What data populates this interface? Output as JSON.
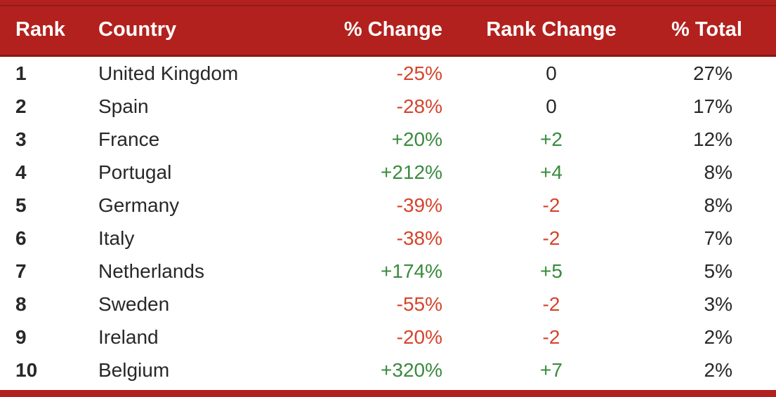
{
  "colors": {
    "header_bg": "#B2211D",
    "header_text": "#FFFFFF",
    "accent_line": "#8C1712",
    "text": "#282828",
    "negative": "#D6432C",
    "positive": "#3A8A3E"
  },
  "table": {
    "columns": [
      {
        "label": "Rank"
      },
      {
        "label": "Country"
      },
      {
        "label": "% Change"
      },
      {
        "label": "Rank Change"
      },
      {
        "label": "% Total"
      }
    ],
    "rows": [
      {
        "rank": "1",
        "country": "United Kingdom",
        "pct_change": "-25%",
        "rank_change": "0",
        "pct_total": "27%"
      },
      {
        "rank": "2",
        "country": "Spain",
        "pct_change": "-28%",
        "rank_change": "0",
        "pct_total": "17%"
      },
      {
        "rank": "3",
        "country": "France",
        "pct_change": "+20%",
        "rank_change": "+2",
        "pct_total": "12%"
      },
      {
        "rank": "4",
        "country": "Portugal",
        "pct_change": "+212%",
        "rank_change": "+4",
        "pct_total": "8%"
      },
      {
        "rank": "5",
        "country": "Germany",
        "pct_change": "-39%",
        "rank_change": "-2",
        "pct_total": "8%"
      },
      {
        "rank": "6",
        "country": "Italy",
        "pct_change": "-38%",
        "rank_change": "-2",
        "pct_total": "7%"
      },
      {
        "rank": "7",
        "country": "Netherlands",
        "pct_change": "+174%",
        "rank_change": "+5",
        "pct_total": "5%"
      },
      {
        "rank": "8",
        "country": "Sweden",
        "pct_change": "-55%",
        "rank_change": "-2",
        "pct_total": "3%"
      },
      {
        "rank": "9",
        "country": "Ireland",
        "pct_change": "-20%",
        "rank_change": "-2",
        "pct_total": "2%"
      },
      {
        "rank": "10",
        "country": "Belgium",
        "pct_change": "+320%",
        "rank_change": "+7",
        "pct_total": "2%"
      }
    ]
  },
  "chart_data": {
    "type": "table",
    "columns": [
      "Rank",
      "Country",
      "% Change",
      "Rank Change",
      "% Total"
    ],
    "rows": [
      [
        1,
        "United Kingdom",
        "-25%",
        "0",
        "27%"
      ],
      [
        2,
        "Spain",
        "-28%",
        "0",
        "17%"
      ],
      [
        3,
        "France",
        "+20%",
        "+2",
        "12%"
      ],
      [
        4,
        "Portugal",
        "+212%",
        "+4",
        "8%"
      ],
      [
        5,
        "Germany",
        "-39%",
        "-2",
        "8%"
      ],
      [
        6,
        "Italy",
        "-38%",
        "-2",
        "7%"
      ],
      [
        7,
        "Netherlands",
        "+174%",
        "+5",
        "5%"
      ],
      [
        8,
        "Sweden",
        "-55%",
        "-2",
        "3%"
      ],
      [
        9,
        "Ireland",
        "-20%",
        "-2",
        "2%"
      ],
      [
        10,
        "Belgium",
        "+320%",
        "+7",
        "2%"
      ]
    ],
    "layout_hints": {
      "header_style": "bold white on dark red",
      "negative_values_color": "#D6432C",
      "positive_values_color": "#3A8A3E",
      "grid": "none",
      "bottom_border": "dark red bar"
    }
  }
}
